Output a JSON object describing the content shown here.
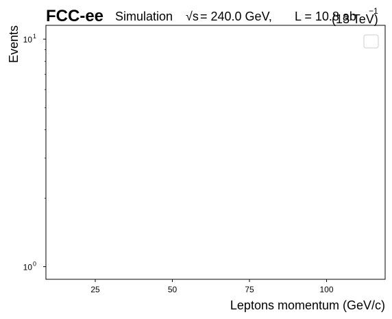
{
  "chart_data": {
    "type": "bar",
    "experiment": "FCC-ee",
    "header_label": "Simulation",
    "sqrt_s_symbol": "√s",
    "energy_text": "= 240.0 GeV,",
    "lumi_text": "L = 10.8 ab",
    "lumi_exp": "−1",
    "overlay_text": "(13 TeV)",
    "xlabel": "Leptons momentum (GeV/c)",
    "ylabel": "Events",
    "xlim": [
      9,
      119
    ],
    "ylim": [
      0.88,
      11.5
    ],
    "yscale": "log",
    "x_ticks": [
      {
        "value": 25,
        "label": "25"
      },
      {
        "value": 50,
        "label": "50"
      },
      {
        "value": 75,
        "label": "75"
      },
      {
        "value": 100,
        "label": "100"
      }
    ],
    "y_ticks": [
      {
        "value": 1,
        "base": "10",
        "exp": "0"
      },
      {
        "value": 10,
        "base": "10",
        "exp": "1"
      }
    ],
    "y_minor_ticks": [
      2,
      3,
      4,
      5,
      6,
      7,
      8,
      9
    ],
    "series": [],
    "legend_placement": "top-right",
    "legend_entries": [],
    "grid": false
  }
}
